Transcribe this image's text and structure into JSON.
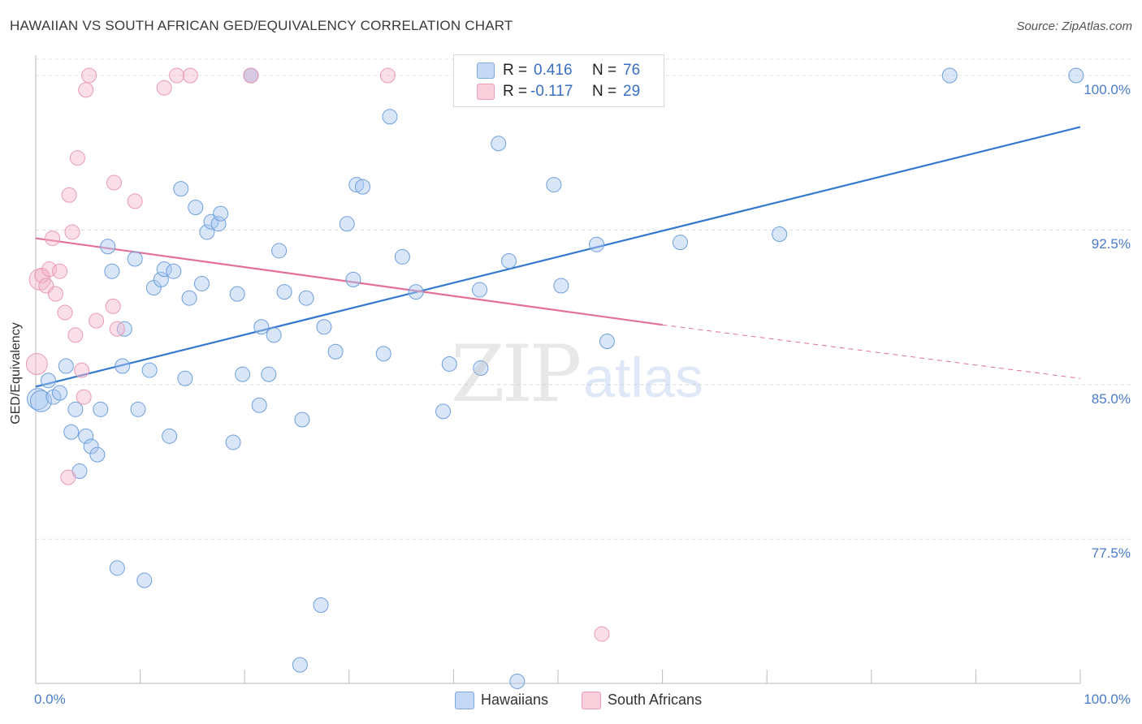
{
  "title": "HAWAIIAN VS SOUTH AFRICAN GED/EQUIVALENCY CORRELATION CHART",
  "source": "Source: ZipAtlas.com",
  "watermark": {
    "zip": "ZIP",
    "atlas": "atlas"
  },
  "legend": {
    "rows": [
      {
        "r_label": "R =",
        "r_value": "0.416",
        "n_label": "N =",
        "n_value": "76",
        "color": "#a9c7ef"
      },
      {
        "r_label": "R =",
        "r_value": "-0.117",
        "n_label": "N =",
        "n_value": "29",
        "color": "#f5b8cb"
      }
    ]
  },
  "bottom_legend": [
    {
      "label": "Hawaiians",
      "color": "#a9c7ef"
    },
    {
      "label": "South Africans",
      "color": "#f5b8cb"
    }
  ],
  "chart_data": {
    "type": "scatter",
    "title": "HAWAIIAN VS SOUTH AFRICAN GED/EQUIVALENCY CORRELATION CHART",
    "xlabel": "",
    "ylabel": "GED/Equivalency",
    "xlim": [
      0,
      100
    ],
    "ylim": [
      70.5,
      101.3
    ],
    "x_tick_labels": [
      "0.0%",
      "100.0%"
    ],
    "y_ticks": [
      77.5,
      85.0,
      92.5,
      100.0
    ],
    "y_tick_labels": [
      "77.5%",
      "85.0%",
      "92.5%",
      "100.0%"
    ],
    "grid": "horizontal dashed",
    "legend_position": "top-center",
    "series": [
      {
        "name": "Hawaiians",
        "color": "#a9c7ef",
        "stroke": "#6f9fdc",
        "points": [
          [
            0.2,
            84.3
          ],
          [
            0.5,
            84.2
          ],
          [
            1.2,
            85.2
          ],
          [
            1.7,
            84.4
          ],
          [
            2.3,
            84.6
          ],
          [
            2.9,
            85.9
          ],
          [
            3.4,
            82.7
          ],
          [
            3.8,
            83.8
          ],
          [
            4.2,
            80.8
          ],
          [
            4.8,
            82.5
          ],
          [
            5.3,
            82.0
          ],
          [
            5.9,
            81.6
          ],
          [
            6.2,
            83.8
          ],
          [
            6.9,
            91.7
          ],
          [
            7.3,
            90.5
          ],
          [
            7.8,
            76.1
          ],
          [
            8.3,
            85.9
          ],
          [
            8.5,
            87.7
          ],
          [
            9.5,
            91.1
          ],
          [
            9.8,
            83.8
          ],
          [
            10.4,
            75.5
          ],
          [
            10.9,
            85.7
          ],
          [
            11.3,
            89.7
          ],
          [
            12.0,
            90.1
          ],
          [
            12.3,
            90.6
          ],
          [
            12.8,
            82.5
          ],
          [
            13.2,
            90.5
          ],
          [
            13.9,
            94.5
          ],
          [
            14.3,
            85.3
          ],
          [
            14.7,
            89.2
          ],
          [
            15.3,
            93.6
          ],
          [
            15.9,
            89.9
          ],
          [
            16.4,
            92.4
          ],
          [
            16.8,
            92.9
          ],
          [
            17.5,
            92.8
          ],
          [
            17.7,
            93.3
          ],
          [
            18.9,
            82.2
          ],
          [
            19.3,
            89.4
          ],
          [
            19.8,
            85.5
          ],
          [
            20.6,
            100.0
          ],
          [
            21.4,
            84.0
          ],
          [
            21.6,
            87.8
          ],
          [
            22.3,
            85.5
          ],
          [
            22.8,
            87.4
          ],
          [
            23.3,
            91.5
          ],
          [
            23.8,
            89.5
          ],
          [
            25.3,
            71.4
          ],
          [
            25.5,
            83.3
          ],
          [
            25.9,
            89.2
          ],
          [
            27.3,
            74.3
          ],
          [
            27.6,
            87.8
          ],
          [
            28.7,
            86.6
          ],
          [
            29.8,
            92.8
          ],
          [
            30.4,
            90.1
          ],
          [
            30.7,
            94.7
          ],
          [
            31.3,
            94.6
          ],
          [
            33.3,
            86.5
          ],
          [
            33.9,
            98.0
          ],
          [
            35.1,
            91.2
          ],
          [
            36.4,
            89.5
          ],
          [
            39.0,
            83.7
          ],
          [
            39.6,
            86.0
          ],
          [
            42.5,
            89.6
          ],
          [
            42.6,
            85.8
          ],
          [
            44.3,
            96.7
          ],
          [
            45.3,
            91.0
          ],
          [
            46.1,
            70.6
          ],
          [
            49.6,
            94.7
          ],
          [
            50.3,
            89.8
          ],
          [
            53.7,
            91.8
          ],
          [
            54.7,
            87.1
          ],
          [
            61.7,
            91.9
          ],
          [
            71.2,
            92.3
          ],
          [
            87.5,
            100.0
          ],
          [
            99.6,
            100.0
          ],
          [
            20.6,
            100.0
          ]
        ]
      },
      {
        "name": "South Africans",
        "color": "#f5b8cb",
        "stroke": "#e89ab3",
        "points": [
          [
            0.1,
            86.0
          ],
          [
            0.4,
            90.1
          ],
          [
            0.6,
            90.3
          ],
          [
            1.0,
            89.8
          ],
          [
            1.3,
            90.6
          ],
          [
            1.6,
            92.1
          ],
          [
            1.9,
            89.4
          ],
          [
            2.3,
            90.5
          ],
          [
            2.8,
            88.5
          ],
          [
            3.1,
            80.5
          ],
          [
            3.2,
            94.2
          ],
          [
            3.5,
            92.4
          ],
          [
            3.8,
            87.4
          ],
          [
            4.0,
            96.0
          ],
          [
            4.4,
            85.7
          ],
          [
            4.6,
            84.4
          ],
          [
            4.8,
            99.3
          ],
          [
            5.1,
            100.0
          ],
          [
            5.8,
            88.1
          ],
          [
            7.4,
            88.8
          ],
          [
            7.5,
            94.8
          ],
          [
            7.8,
            87.7
          ],
          [
            9.5,
            93.9
          ],
          [
            12.3,
            99.4
          ],
          [
            13.5,
            100.0
          ],
          [
            14.8,
            100.0
          ],
          [
            20.6,
            100.0
          ],
          [
            33.7,
            100.0
          ],
          [
            54.2,
            72.9
          ]
        ]
      }
    ],
    "trendlines": [
      {
        "series": "Hawaiians",
        "x": [
          0,
          100
        ],
        "y": [
          84.9,
          97.5
        ],
        "style": "solid"
      },
      {
        "series": "South Africans",
        "x": [
          0,
          60
        ],
        "y": [
          92.1,
          87.9
        ],
        "style": "solid"
      },
      {
        "series": "South Africans",
        "x": [
          60,
          100
        ],
        "y": [
          87.9,
          85.3
        ],
        "style": "dashed"
      }
    ]
  }
}
